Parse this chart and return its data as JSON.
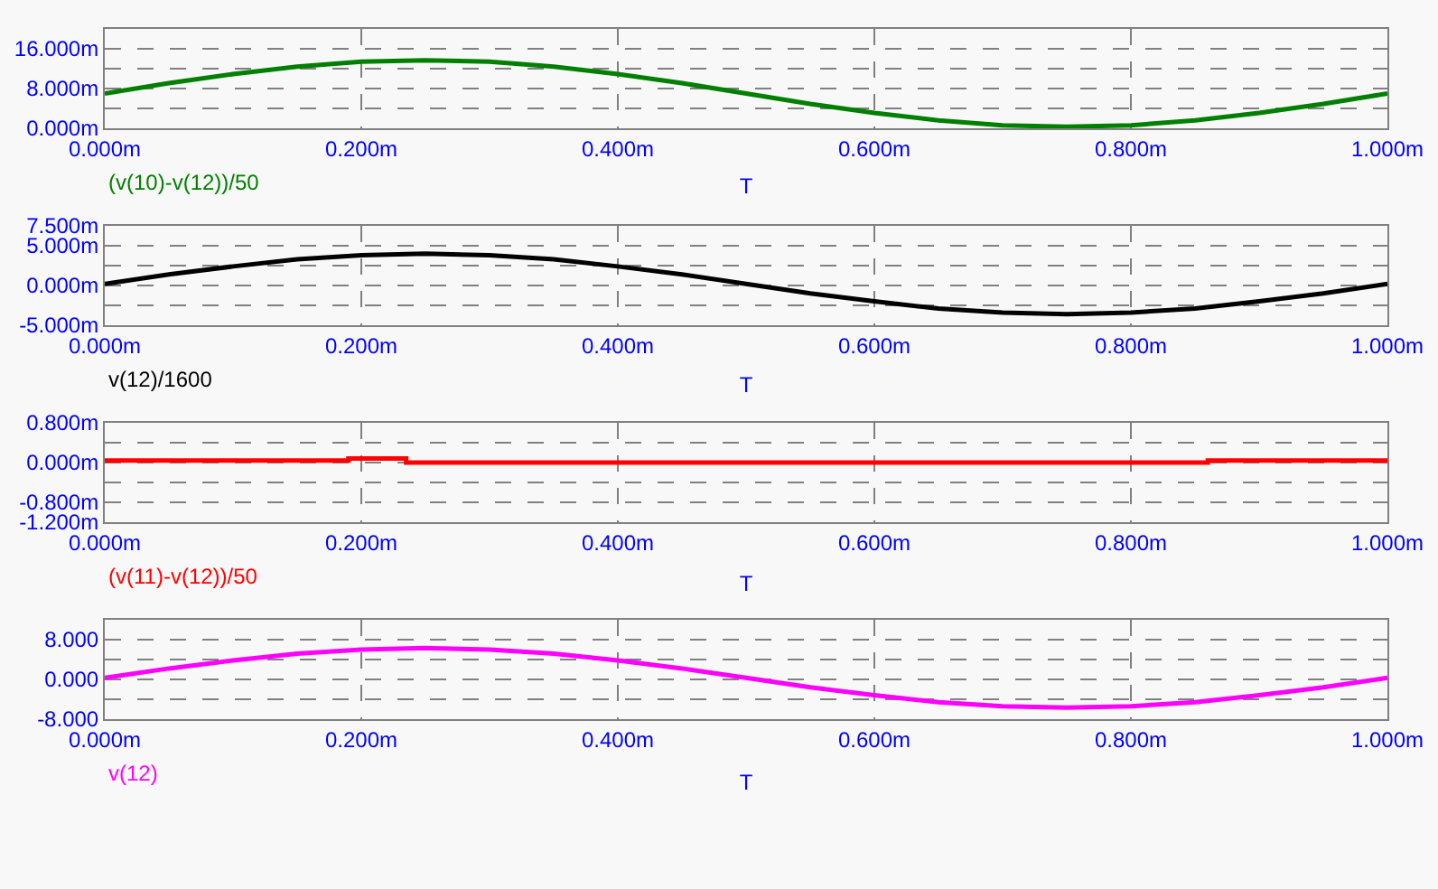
{
  "chart_data": [
    {
      "type": "line",
      "xlabel": "T",
      "grid": true,
      "x": [
        0,
        0.05,
        0.1,
        0.15,
        0.2,
        0.25,
        0.3,
        0.35,
        0.4,
        0.45,
        0.5,
        0.55,
        0.6,
        0.65,
        0.7,
        0.75,
        0.8,
        0.85,
        0.9,
        0.95,
        1
      ],
      "series": [
        {
          "name": "(v(10)-v(12))/50",
          "color": "#008000",
          "values": [
            7.0,
            9.1,
            10.9,
            12.4,
            13.4,
            13.7,
            13.4,
            12.4,
            10.9,
            9.1,
            7.0,
            4.9,
            3.1,
            1.6,
            0.6,
            0.3,
            0.6,
            1.6,
            3.1,
            4.9,
            7.0
          ]
        }
      ],
      "xlim": [
        0,
        1
      ],
      "xticks": [
        {
          "value": 0,
          "label": "0.000m"
        },
        {
          "value": 0.2,
          "label": "0.200m"
        },
        {
          "value": 0.4,
          "label": "0.400m"
        },
        {
          "value": 0.6,
          "label": "0.600m"
        },
        {
          "value": 0.8,
          "label": "0.800m"
        },
        {
          "value": 1,
          "label": "1.000m"
        }
      ],
      "ylim": [
        0,
        20
      ],
      "yticks": [
        {
          "value": 0,
          "label": "0.000m"
        },
        {
          "value": 4,
          "label": null
        },
        {
          "value": 8,
          "label": "8.000m"
        },
        {
          "value": 12,
          "label": null
        },
        {
          "value": 16,
          "label": "16.000m"
        }
      ]
    },
    {
      "type": "line",
      "xlabel": "T",
      "grid": true,
      "x": [
        0,
        0.05,
        0.1,
        0.15,
        0.2,
        0.25,
        0.3,
        0.35,
        0.4,
        0.45,
        0.5,
        0.55,
        0.6,
        0.65,
        0.7,
        0.75,
        0.8,
        0.85,
        0.9,
        0.95,
        1
      ],
      "series": [
        {
          "name": "v(12)/1600",
          "color": "#000000",
          "values": [
            0.2,
            1.4,
            2.4,
            3.3,
            3.8,
            4.0,
            3.8,
            3.3,
            2.4,
            1.4,
            0.2,
            -1.0,
            -2.0,
            -2.9,
            -3.4,
            -3.6,
            -3.4,
            -2.9,
            -2.0,
            -1.0,
            0.2
          ]
        }
      ],
      "xlim": [
        0,
        1
      ],
      "xticks": [
        {
          "value": 0,
          "label": "0.000m"
        },
        {
          "value": 0.2,
          "label": "0.200m"
        },
        {
          "value": 0.4,
          "label": "0.400m"
        },
        {
          "value": 0.6,
          "label": "0.600m"
        },
        {
          "value": 0.8,
          "label": "0.800m"
        },
        {
          "value": 1,
          "label": "1.000m"
        }
      ],
      "ylim": [
        -5,
        7.5
      ],
      "yticks": [
        {
          "value": -5,
          "label": "-5.000m"
        },
        {
          "value": -2.5,
          "label": null
        },
        {
          "value": 0,
          "label": "0.000m"
        },
        {
          "value": 2.5,
          "label": null
        },
        {
          "value": 5,
          "label": "5.000m"
        },
        {
          "value": 7.5,
          "label": "7.500m"
        }
      ]
    },
    {
      "type": "line",
      "xlabel": "T",
      "grid": true,
      "x": [
        0,
        0.19,
        0.19,
        0.235,
        0.235,
        0.86,
        0.86,
        1
      ],
      "series": [
        {
          "name": "(v(11)-v(12))/50",
          "color": "#ff0000",
          "values": [
            0.04,
            0.04,
            0.08,
            0.08,
            0,
            0,
            0.04,
            0.04
          ]
        }
      ],
      "xlim": [
        0,
        1
      ],
      "xticks": [
        {
          "value": 0,
          "label": "0.000m"
        },
        {
          "value": 0.2,
          "label": "0.200m"
        },
        {
          "value": 0.4,
          "label": "0.400m"
        },
        {
          "value": 0.6,
          "label": "0.600m"
        },
        {
          "value": 0.8,
          "label": "0.800m"
        },
        {
          "value": 1,
          "label": "1.000m"
        }
      ],
      "ylim": [
        -1.2,
        0.8
      ],
      "yticks": [
        {
          "value": -1.2,
          "label": "-1.200m"
        },
        {
          "value": -0.8,
          "label": "-0.800m"
        },
        {
          "value": -0.4,
          "label": null
        },
        {
          "value": 0,
          "label": "0.000m"
        },
        {
          "value": 0.4,
          "label": null
        },
        {
          "value": 0.8,
          "label": "0.800m"
        }
      ]
    },
    {
      "type": "line",
      "xlabel": "T",
      "grid": true,
      "x": [
        0,
        0.05,
        0.1,
        0.15,
        0.2,
        0.25,
        0.3,
        0.35,
        0.4,
        0.45,
        0.5,
        0.55,
        0.6,
        0.65,
        0.7,
        0.75,
        0.8,
        0.85,
        0.9,
        0.95,
        1
      ],
      "series": [
        {
          "name": "v(12)",
          "color": "#ff00ff",
          "values": [
            0.3,
            2.2,
            3.8,
            5.2,
            6.0,
            6.3,
            6.0,
            5.2,
            3.8,
            2.2,
            0.3,
            -1.6,
            -3.2,
            -4.6,
            -5.4,
            -5.7,
            -5.4,
            -4.6,
            -3.2,
            -1.6,
            0.3
          ]
        }
      ],
      "xlim": [
        0,
        1
      ],
      "xticks": [
        {
          "value": 0,
          "label": "0.000m"
        },
        {
          "value": 0.2,
          "label": "0.200m"
        },
        {
          "value": 0.4,
          "label": "0.400m"
        },
        {
          "value": 0.6,
          "label": "0.600m"
        },
        {
          "value": 0.8,
          "label": "0.800m"
        },
        {
          "value": 1,
          "label": "1.000m"
        }
      ],
      "ylim": [
        -8,
        12
      ],
      "yticks": [
        {
          "value": -8,
          "label": "-8.000"
        },
        {
          "value": -4,
          "label": null
        },
        {
          "value": 0,
          "label": "0.000"
        },
        {
          "value": 4,
          "label": null
        },
        {
          "value": 8,
          "label": "8.000"
        }
      ]
    }
  ]
}
